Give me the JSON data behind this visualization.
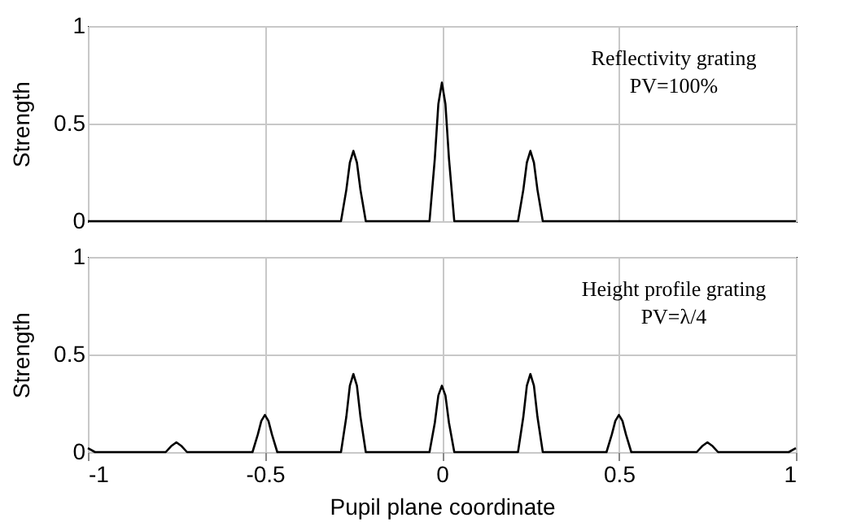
{
  "chart_data": [
    {
      "type": "line",
      "ylabel": "Strength",
      "annotations": [
        "Reflectivity grating",
        "PV=100%"
      ],
      "xlim": [
        -1,
        1
      ],
      "xticks": [
        -1,
        -0.5,
        0,
        0.5,
        1
      ],
      "ylim": [
        0,
        1
      ],
      "yticks": [
        0,
        0.5,
        1
      ],
      "grid": true,
      "tick_labels": "y",
      "line_style": "solid",
      "series": [
        {
          "color": "#000000",
          "x": [
            -1,
            -0.285,
            -0.27,
            -0.26,
            -0.25,
            -0.24,
            -0.23,
            -0.215,
            -0.035,
            -0.02,
            -0.01,
            0,
            0.01,
            0.02,
            0.035,
            0.215,
            0.23,
            0.24,
            0.25,
            0.26,
            0.27,
            0.285,
            1
          ],
          "values": [
            0,
            0,
            0.16,
            0.3,
            0.36,
            0.3,
            0.16,
            0,
            0,
            0.32,
            0.6,
            0.71,
            0.6,
            0.32,
            0,
            0,
            0.16,
            0.3,
            0.36,
            0.3,
            0.16,
            0,
            0
          ]
        }
      ]
    },
    {
      "type": "line",
      "xlabel": "Pupil plane coordinate",
      "ylabel": "Strength",
      "annotations": [
        "Height profile grating",
        "PV=λ/4"
      ],
      "xlim": [
        -1,
        1
      ],
      "xticks": [
        -1,
        -0.5,
        0,
        0.5,
        1
      ],
      "ylim": [
        0,
        1
      ],
      "yticks": [
        0,
        0.5,
        1
      ],
      "grid": true,
      "line_style": "solid",
      "series": [
        {
          "color": "#000000",
          "x": [
            -1,
            -0.98,
            -0.78,
            -0.765,
            -0.75,
            -0.735,
            -0.72,
            -0.535,
            -0.52,
            -0.51,
            -0.5,
            -0.49,
            -0.48,
            -0.465,
            -0.285,
            -0.27,
            -0.26,
            -0.25,
            -0.24,
            -0.23,
            -0.215,
            -0.035,
            -0.02,
            -0.01,
            0,
            0.01,
            0.02,
            0.035,
            0.215,
            0.23,
            0.24,
            0.25,
            0.26,
            0.27,
            0.285,
            0.465,
            0.48,
            0.49,
            0.5,
            0.51,
            0.52,
            0.535,
            0.72,
            0.735,
            0.75,
            0.765,
            0.78,
            0.98,
            1
          ],
          "values": [
            0.02,
            0,
            0,
            0.03,
            0.05,
            0.03,
            0,
            0,
            0.09,
            0.16,
            0.19,
            0.16,
            0.09,
            0,
            0,
            0.18,
            0.34,
            0.4,
            0.34,
            0.18,
            0,
            0,
            0.15,
            0.29,
            0.34,
            0.29,
            0.15,
            0,
            0,
            0.18,
            0.34,
            0.4,
            0.34,
            0.18,
            0,
            0,
            0.09,
            0.16,
            0.19,
            0.16,
            0.09,
            0,
            0,
            0.03,
            0.05,
            0.03,
            0,
            0,
            0.02
          ]
        }
      ]
    }
  ]
}
